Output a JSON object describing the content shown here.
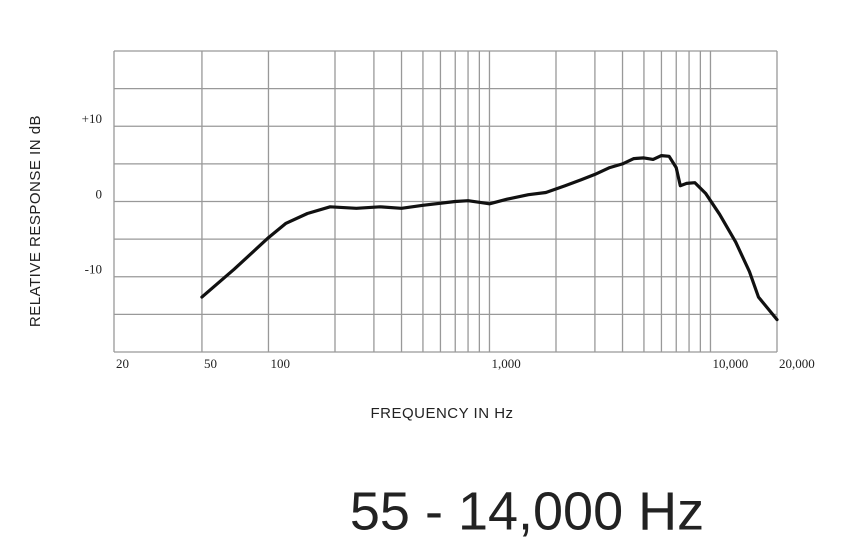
{
  "chart_data": {
    "type": "line",
    "subtitle": "55 - 14,000 Hz",
    "x_label": "FREQUENCY IN Hz",
    "y_label": "RELATIVE RESPONSE IN dB",
    "log_x": true,
    "grid": true,
    "color": "#111111",
    "x": [
      50,
      70,
      100,
      120,
      150,
      190,
      250,
      320,
      400,
      500,
      700,
      800,
      900,
      1000,
      1200,
      1500,
      1800,
      2200,
      2600,
      3000,
      3500,
      4000,
      4500,
      5000,
      5500,
      6000,
      6500,
      7000,
      7300,
      7800,
      8500,
      9500,
      11000,
      13000,
      15000,
      16500,
      20000
    ],
    "values": [
      -12.7,
      -9,
      -4.8,
      -2.9,
      -1.6,
      -0.7,
      -0.9,
      -0.7,
      -0.9,
      -0.5,
      0,
      0.1,
      -0.1,
      -0.3,
      0.3,
      0.9,
      1.2,
      2.1,
      2.9,
      3.6,
      4.5,
      5,
      5.7,
      5.8,
      5.6,
      6.1,
      6,
      4.5,
      2.1,
      2.4,
      2.5,
      1.1,
      -1.7,
      -5.4,
      -9.3,
      -12.7,
      -15.7
    ],
    "xlim": [
      20,
      20000
    ],
    "xticks": [
      20,
      50,
      100,
      {
        "value": 1000,
        "label": "1,000"
      },
      {
        "value": 10000,
        "label": "10,000"
      },
      {
        "value": 20000,
        "label": "20,000"
      }
    ],
    "x_minor_ticks": [
      200,
      300,
      400,
      500,
      600,
      700,
      800,
      900,
      2000,
      3000,
      4000,
      5000,
      6000,
      7000,
      8000,
      9000
    ],
    "ylim": [
      -20,
      20
    ],
    "yticks": [
      {
        "value": 10,
        "label": "+10"
      },
      0,
      -10
    ],
    "y_minor_ticks": [
      -20,
      -15,
      -5,
      5,
      15,
      20
    ]
  }
}
